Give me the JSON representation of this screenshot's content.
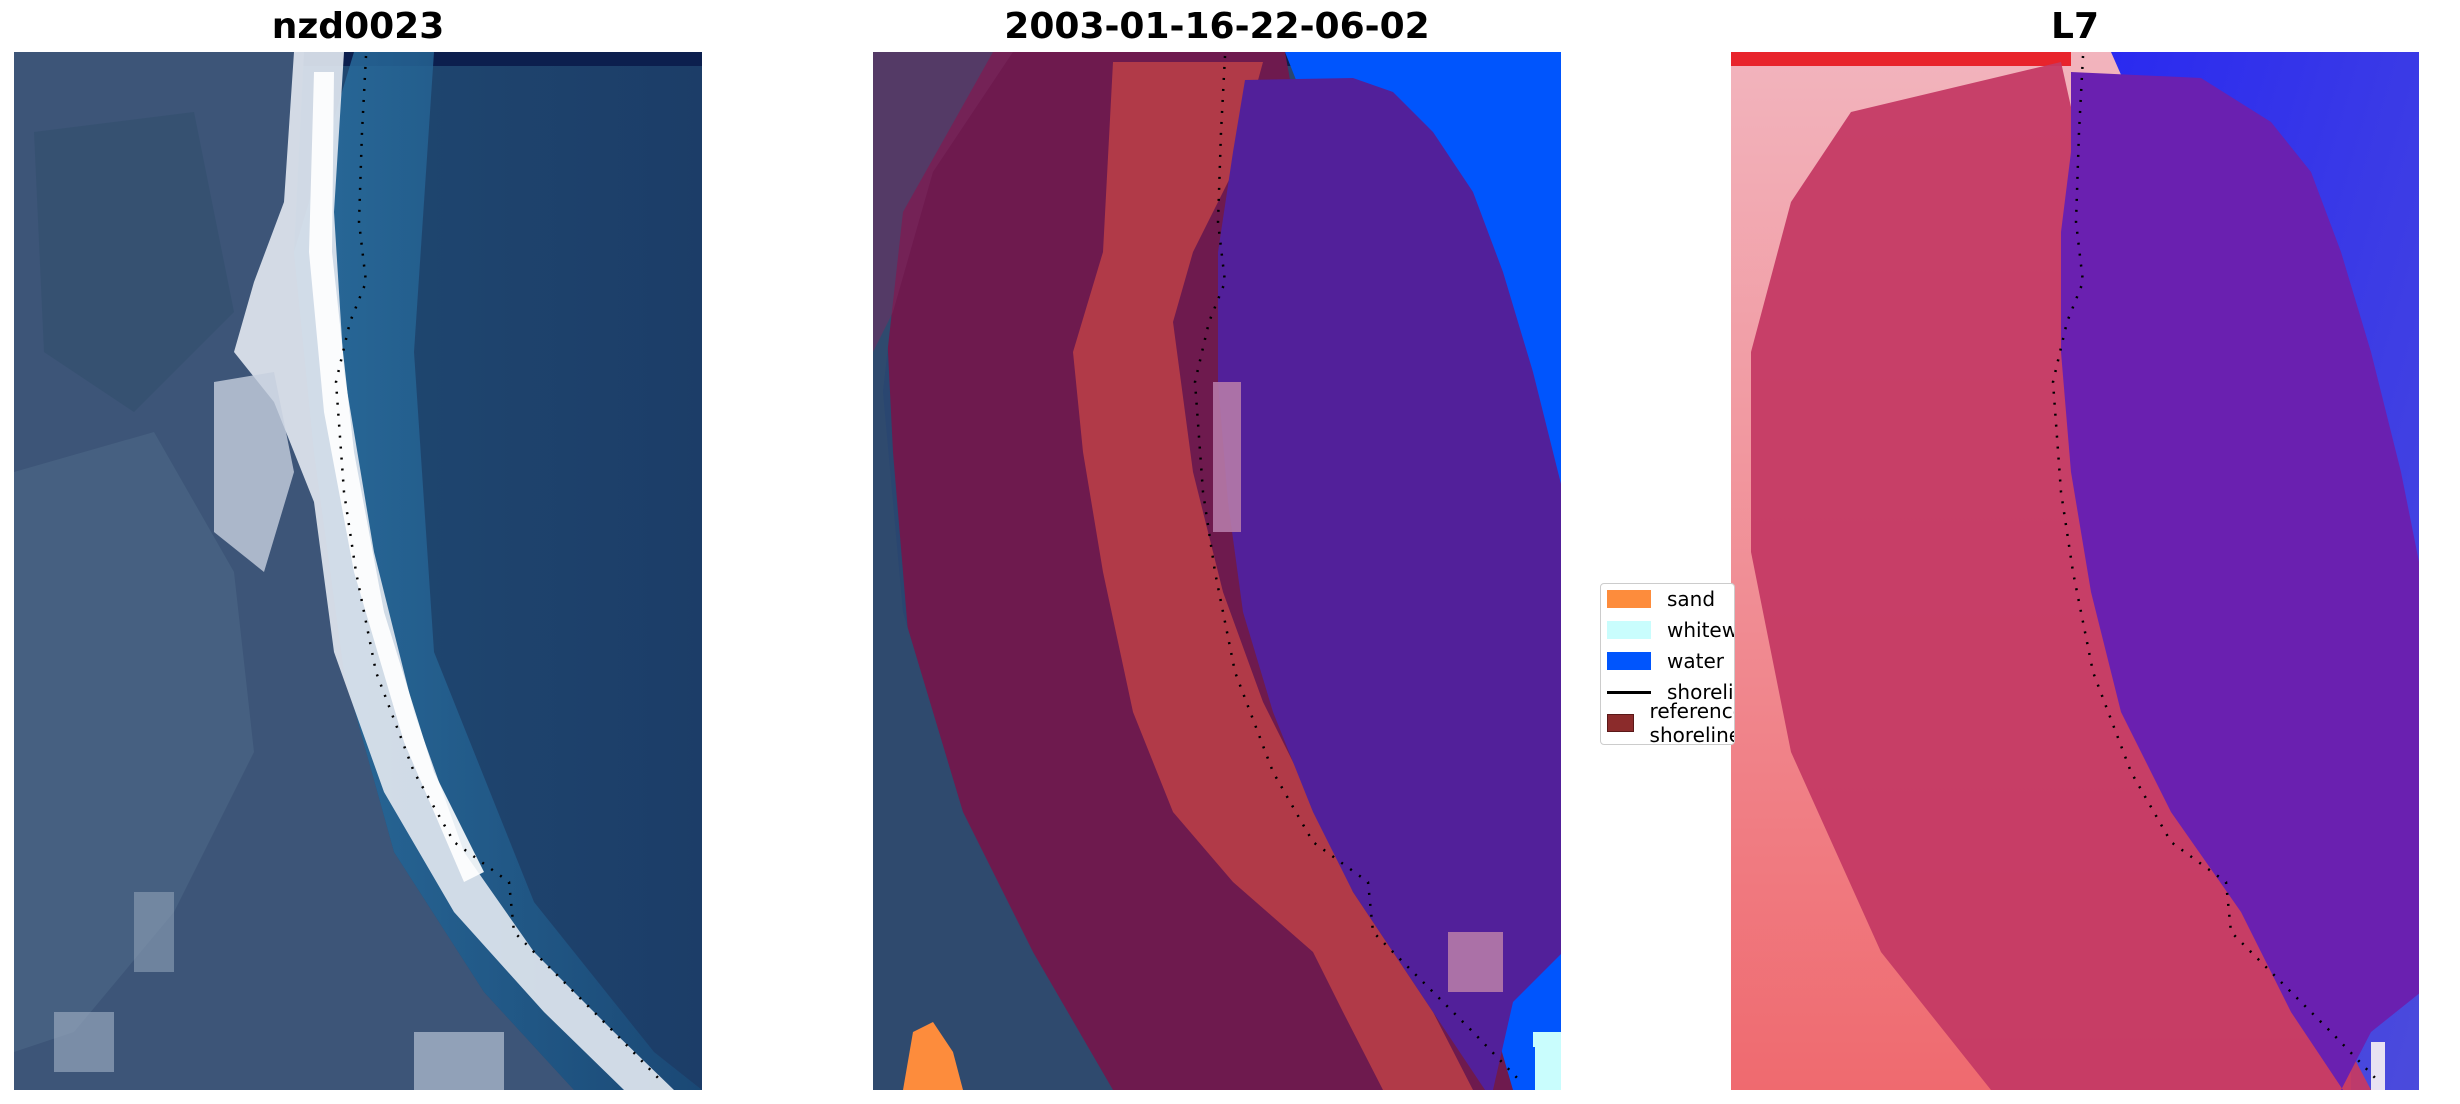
{
  "panels": [
    {
      "title": "nzd0023"
    },
    {
      "title": "2003-01-16-22-06-02"
    },
    {
      "title": "L7"
    }
  ],
  "legend": {
    "items": [
      {
        "label": "sand",
        "color": "#fd8c3c",
        "kind": "patch"
      },
      {
        "label": "whitewater",
        "color": "#c9fdfd",
        "kind": "patch"
      },
      {
        "label": "water",
        "color": "#0055fd",
        "kind": "patch"
      },
      {
        "label": "shoreline",
        "color": "#000000",
        "kind": "line"
      },
      {
        "label": "reference shoreline",
        "color": "#8b2b2b",
        "kind": "patch"
      }
    ]
  },
  "colors": {
    "satellite_deep_water": "#1d3a66",
    "satellite_mid": "#3a5c84",
    "beach_white": "#eef2f7",
    "classified_land": "#6e1a4e",
    "classified_sand": "#b13a48",
    "classified_water": "#0055fd",
    "classified_buffer_water": "#52209a",
    "index_land": "#c43a64",
    "index_water": "#3a2fd6",
    "index_buffer_overlay": "#8a2e8c"
  }
}
